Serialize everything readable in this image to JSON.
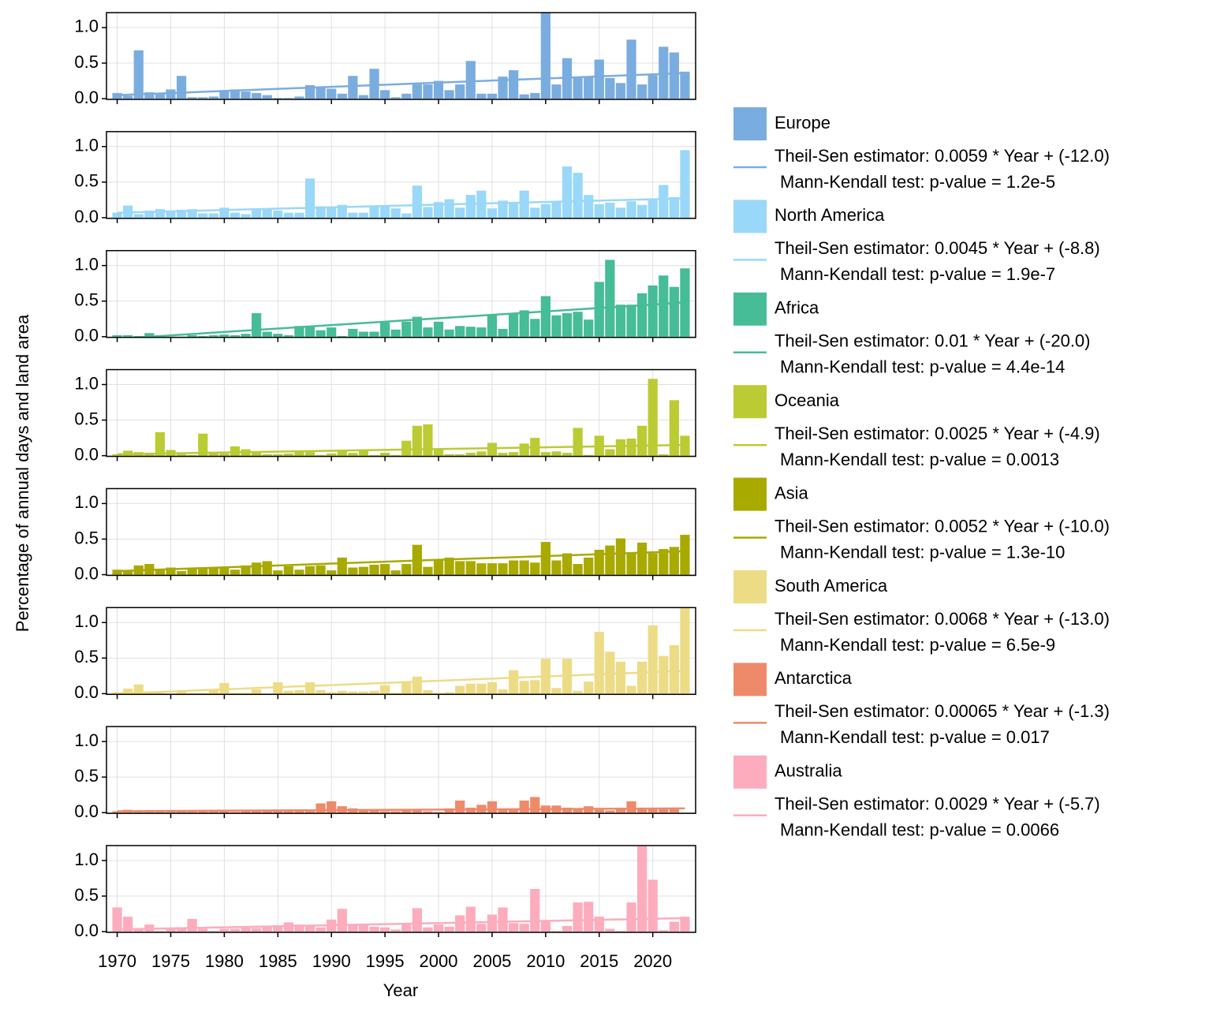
{
  "chart_data": {
    "type": "bar",
    "xlabel": "Year",
    "ylabel": "Percentage of annual days and land area",
    "x": [
      1970,
      1971,
      1972,
      1973,
      1974,
      1975,
      1976,
      1977,
      1978,
      1979,
      1980,
      1981,
      1982,
      1983,
      1984,
      1985,
      1986,
      1987,
      1988,
      1989,
      1990,
      1991,
      1992,
      1993,
      1994,
      1995,
      1996,
      1997,
      1998,
      1999,
      2000,
      2001,
      2002,
      2003,
      2004,
      2005,
      2006,
      2007,
      2008,
      2009,
      2010,
      2011,
      2012,
      2013,
      2014,
      2015,
      2016,
      2017,
      2018,
      2019,
      2020,
      2021,
      2022,
      2023
    ],
    "xlim": [
      1969,
      2024
    ],
    "xticks": [
      1970,
      1975,
      1980,
      1985,
      1990,
      1995,
      2000,
      2005,
      2010,
      2015,
      2020
    ],
    "ylim": [
      -0.01,
      1.21
    ],
    "yticks": [
      {
        "value": 0,
        "label": "0.0"
      },
      {
        "value": 0.5,
        "label": "0.5"
      },
      {
        "value": 1,
        "label": "1.0"
      }
    ],
    "grid": true,
    "trend_x": [
      1970,
      2023
    ],
    "series": [
      {
        "name": "Europe",
        "color": "#7aaddf",
        "trend_label": [
          "Theil-Sen estimator: 0.0059 * Year + (-12.0)",
          "Mann-Kendall test: p-value = 1.2e-5"
        ],
        "trend_values": [
          0.05,
          0.36
        ],
        "values": [
          0.08,
          0.04,
          0.68,
          0.09,
          0.07,
          0.13,
          0.32,
          0.02,
          0.02,
          0.03,
          0.1,
          0.13,
          0.1,
          0.08,
          0.05,
          0.01,
          0.01,
          0.03,
          0.19,
          0.15,
          0.14,
          0.07,
          0.32,
          0.05,
          0.42,
          0.12,
          0.02,
          0.07,
          0.2,
          0.2,
          0.25,
          0.12,
          0.2,
          0.53,
          0.07,
          0.07,
          0.31,
          0.4,
          0.06,
          0.08,
          1.22,
          0.2,
          0.57,
          0.29,
          0.31,
          0.55,
          0.29,
          0.22,
          0.83,
          0.2,
          0.33,
          0.73,
          0.65,
          0.38
        ]
      },
      {
        "name": "North America",
        "color": "#99d8f9",
        "trend_label": [
          "Theil-Sen estimator: 0.0045 * Year + (-8.8)",
          "Mann-Kendall test: p-value = 1.9e-7"
        ],
        "trend_values": [
          0.07,
          0.27
        ],
        "values": [
          0.07,
          0.17,
          0.05,
          0.1,
          0.12,
          0.08,
          0.11,
          0.12,
          0.06,
          0.06,
          0.14,
          0.07,
          0.05,
          0.12,
          0.11,
          0.1,
          0.07,
          0.07,
          0.55,
          0.16,
          0.14,
          0.18,
          0.07,
          0.07,
          0.15,
          0.17,
          0.13,
          0.06,
          0.45,
          0.15,
          0.22,
          0.26,
          0.14,
          0.32,
          0.38,
          0.13,
          0.24,
          0.22,
          0.38,
          0.14,
          0.19,
          0.22,
          0.72,
          0.63,
          0.32,
          0.19,
          0.21,
          0.14,
          0.23,
          0.18,
          0.27,
          0.46,
          0.29,
          0.95
        ]
      },
      {
        "name": "Africa",
        "color": "#46bc97",
        "trend_label": [
          "Theil-Sen estimator: 0.01 * Year + (-20.0)",
          "Mann-Kendall test: p-value = 4.4e-14"
        ],
        "trend_values": [
          -0.03,
          0.48
        ],
        "values": [
          0.02,
          0.02,
          0.01,
          0.05,
          0.01,
          0.0,
          0.0,
          0.02,
          0.01,
          0.02,
          0.03,
          0.02,
          0.04,
          0.33,
          0.07,
          0.04,
          0.02,
          0.15,
          0.14,
          0.09,
          0.13,
          0.01,
          0.11,
          0.07,
          0.07,
          0.2,
          0.1,
          0.21,
          0.28,
          0.13,
          0.21,
          0.1,
          0.15,
          0.14,
          0.13,
          0.31,
          0.11,
          0.33,
          0.37,
          0.25,
          0.57,
          0.3,
          0.33,
          0.35,
          0.24,
          0.77,
          1.08,
          0.45,
          0.45,
          0.61,
          0.72,
          0.86,
          0.7,
          0.96
        ]
      },
      {
        "name": "Oceania",
        "color": "#bbcb33",
        "trend_label": [
          "Theil-Sen estimator: 0.0025 * Year + (-4.9)",
          "Mann-Kendall test: p-value = 0.0013"
        ],
        "trend_values": [
          0.02,
          0.15
        ],
        "values": [
          0.02,
          0.07,
          0.05,
          0.03,
          0.33,
          0.08,
          0.02,
          0.01,
          0.31,
          0.05,
          0.03,
          0.13,
          0.09,
          0.04,
          0.02,
          0.02,
          0.03,
          0.07,
          0.05,
          0.01,
          0.03,
          0.06,
          0.04,
          0.07,
          0.01,
          0.04,
          0.01,
          0.21,
          0.42,
          0.44,
          0.09,
          0.02,
          0.02,
          0.04,
          0.06,
          0.18,
          0.04,
          0.05,
          0.17,
          0.25,
          0.05,
          0.06,
          0.04,
          0.39,
          0.01,
          0.28,
          0.09,
          0.23,
          0.24,
          0.42,
          1.08,
          0.02,
          0.78,
          0.28
        ]
      },
      {
        "name": "Asia",
        "color": "#a8aa00",
        "trend_label": [
          "Theil-Sen estimator: 0.0052 * Year + (-10.0)",
          "Mann-Kendall test: p-value = 1.3e-10"
        ],
        "trend_values": [
          0.05,
          0.33
        ],
        "values": [
          0.07,
          0.05,
          0.13,
          0.15,
          0.08,
          0.1,
          0.05,
          0.08,
          0.09,
          0.1,
          0.09,
          0.07,
          0.13,
          0.17,
          0.19,
          0.06,
          0.12,
          0.07,
          0.12,
          0.13,
          0.06,
          0.24,
          0.1,
          0.11,
          0.14,
          0.15,
          0.06,
          0.15,
          0.42,
          0.11,
          0.2,
          0.24,
          0.19,
          0.19,
          0.16,
          0.16,
          0.16,
          0.2,
          0.2,
          0.17,
          0.46,
          0.2,
          0.3,
          0.15,
          0.24,
          0.35,
          0.41,
          0.51,
          0.31,
          0.45,
          0.3,
          0.36,
          0.39,
          0.56
        ]
      },
      {
        "name": "South America",
        "color": "#eddc86",
        "trend_label": [
          "Theil-Sen estimator: 0.0068 * Year + (-13.0)",
          "Mann-Kendall test: p-value = 6.5e-9"
        ],
        "trend_values": [
          0.0,
          0.32
        ],
        "values": [
          0.02,
          0.07,
          0.13,
          0.03,
          0.01,
          0.0,
          0.03,
          0.01,
          0.01,
          0.05,
          0.15,
          0.01,
          0.01,
          0.06,
          0.0,
          0.16,
          0.04,
          0.05,
          0.16,
          0.05,
          0.02,
          0.04,
          0.03,
          0.03,
          0.04,
          0.12,
          0.01,
          0.16,
          0.24,
          0.05,
          0.01,
          0.02,
          0.11,
          0.14,
          0.14,
          0.16,
          0.06,
          0.33,
          0.18,
          0.19,
          0.49,
          0.08,
          0.49,
          0.04,
          0.17,
          0.87,
          0.59,
          0.45,
          0.11,
          0.45,
          0.96,
          0.53,
          0.68,
          1.2
        ]
      },
      {
        "name": "Antarctica",
        "color": "#ee8a6a",
        "trend_label": [
          "Theil-Sen estimator: 0.00065 * Year + (-1.3)",
          "Mann-Kendall test: p-value = 0.017"
        ],
        "trend_values": [
          0.02,
          0.06
        ],
        "values": [
          0.02,
          0.04,
          0.03,
          0.02,
          0.02,
          0.02,
          0.02,
          0.03,
          0.02,
          0.02,
          0.03,
          0.01,
          0.02,
          0.02,
          0.02,
          0.03,
          0.02,
          0.02,
          0.02,
          0.13,
          0.16,
          0.09,
          0.06,
          0.03,
          0.03,
          0.02,
          0.02,
          0.05,
          0.04,
          0.02,
          0.01,
          0.06,
          0.17,
          0.07,
          0.11,
          0.16,
          0.04,
          0.05,
          0.17,
          0.22,
          0.1,
          0.1,
          0.07,
          0.06,
          0.09,
          0.04,
          0.03,
          0.06,
          0.16,
          0.06,
          0.06,
          0.06,
          0.05,
          0.0
        ]
      },
      {
        "name": "Australia",
        "color": "#fdacbd",
        "trend_label": [
          "Theil-Sen estimator: 0.0029 * Year + (-5.7)",
          "Mann-Kendall test: p-value = 0.0066"
        ],
        "trend_values": [
          0.03,
          0.19
        ],
        "values": [
          0.34,
          0.21,
          0.05,
          0.1,
          0.01,
          0.04,
          0.06,
          0.18,
          0.04,
          0.01,
          0.04,
          0.04,
          0.07,
          0.05,
          0.07,
          0.09,
          0.13,
          0.1,
          0.08,
          0.06,
          0.17,
          0.32,
          0.1,
          0.1,
          0.07,
          0.06,
          0.03,
          0.12,
          0.33,
          0.06,
          0.1,
          0.07,
          0.23,
          0.35,
          0.11,
          0.24,
          0.34,
          0.12,
          0.11,
          0.6,
          0.15,
          0.01,
          0.08,
          0.41,
          0.42,
          0.21,
          0.04,
          0.01,
          0.41,
          1.2,
          0.73,
          0.02,
          0.14,
          0.21
        ]
      }
    ]
  }
}
